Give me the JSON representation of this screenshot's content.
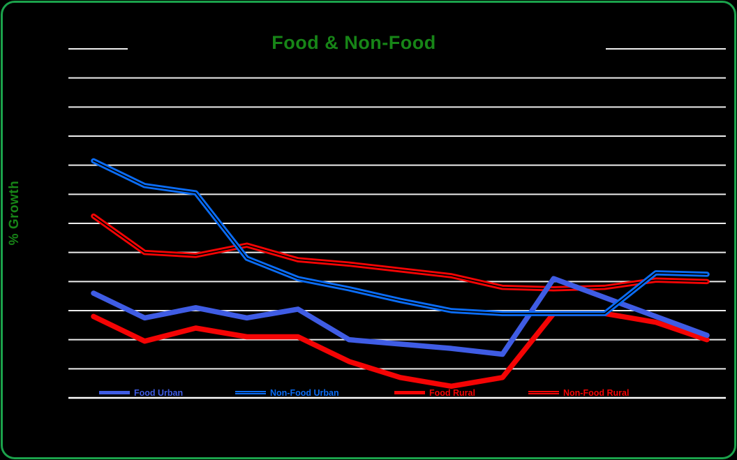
{
  "title": {
    "text": "Food & Non-Food",
    "color": "#178517"
  },
  "ylabel": {
    "text": "% Growth",
    "color": "#178517"
  },
  "frame": {
    "border_color": "#1ba24b",
    "background_color": "#000000"
  },
  "gridline_color": "#ededed",
  "axis_line_color": "#ffffff",
  "chart_data": {
    "type": "line",
    "title": "Food & Non-Food",
    "xlabel": "",
    "ylabel": "% Growth",
    "x_points": 13,
    "ylim": [
      0,
      12
    ],
    "n_gridlines": 12,
    "grid": "horizontal-only",
    "legend_position": "bottom-inside",
    "series": [
      {
        "name": "Food Urban",
        "color": "#3f5ce4",
        "double_line": false,
        "values": [
          3.6,
          2.75,
          3.1,
          2.75,
          3.05,
          2.0,
          1.85,
          1.7,
          1.5,
          4.1,
          3.45,
          2.8,
          2.15
        ]
      },
      {
        "name": "Non-Food Urban",
        "color": "#0a6cf5",
        "double_line": true,
        "values": [
          8.15,
          7.3,
          7.05,
          4.8,
          4.1,
          3.75,
          3.35,
          3.0,
          2.9,
          2.9,
          2.9,
          4.3,
          4.25
        ]
      },
      {
        "name": "Food Rural",
        "color": "#f40404",
        "double_line": false,
        "values": [
          2.8,
          1.95,
          2.4,
          2.1,
          2.1,
          1.25,
          0.7,
          0.4,
          0.7,
          2.9,
          2.9,
          2.6,
          2.0
        ]
      },
      {
        "name": "Non-Food Rural",
        "color": "#f40404",
        "double_line": true,
        "values": [
          6.25,
          5.0,
          4.9,
          5.25,
          4.75,
          4.6,
          4.4,
          4.2,
          3.8,
          3.75,
          3.8,
          4.05,
          4.0
        ]
      }
    ],
    "draw_order": [
      2,
      3,
      0,
      1
    ]
  },
  "legend": {
    "items": [
      {
        "label": "Food Urban",
        "color": "#3f5ce4",
        "double_line": false
      },
      {
        "label": "Non-Food Urban",
        "color": "#0a6cf5",
        "double_line": true
      },
      {
        "label": "Food Rural",
        "color": "#f40404",
        "double_line": false
      },
      {
        "label": "Non-Food Rural",
        "color": "#f40404",
        "double_line": true
      }
    ]
  }
}
